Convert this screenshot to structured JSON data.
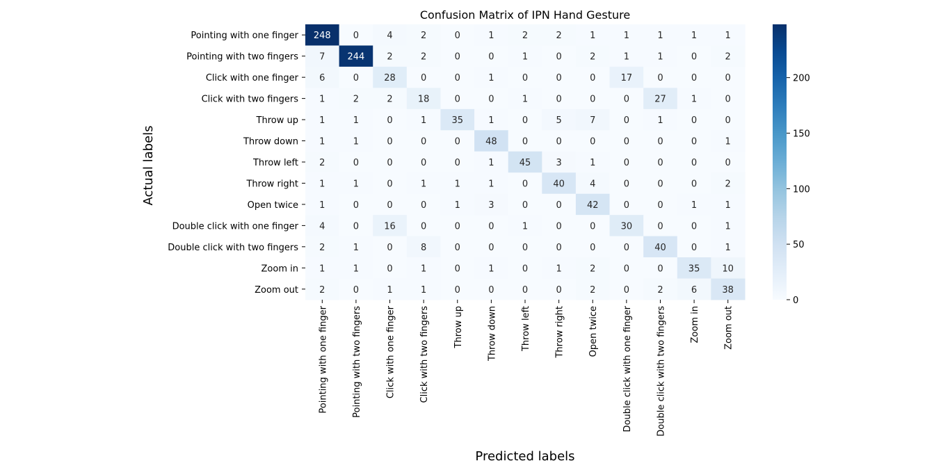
{
  "chart_data": {
    "type": "heatmap",
    "title": "Confusion Matrix of IPN Hand Gesture",
    "xlabel": "Predicted labels",
    "ylabel": "Actual labels",
    "colormap": "Blues",
    "color_range": [
      0,
      248
    ],
    "colorbar_ticks": [
      0,
      50,
      100,
      150,
      200
    ],
    "row_labels": [
      "Pointing with one finger",
      "Pointing with two fingers",
      "Click with one finger",
      "Click with two fingers",
      "Throw up",
      "Throw down",
      "Throw left",
      "Throw right",
      "Open twice",
      "Double click with one finger",
      "Double click with two fingers",
      "Zoom in",
      "Zoom out"
    ],
    "col_labels": [
      "Pointing with one finger",
      "Pointing with two fingers",
      "Click with one finger",
      "Click with two fingers",
      "Throw up",
      "Throw down",
      "Throw left",
      "Throw right",
      "Open twice",
      "Double click with one finger",
      "Double click with two fingers",
      "Zoom in",
      "Zoom out"
    ],
    "matrix": [
      [
        248,
        0,
        4,
        2,
        0,
        1,
        2,
        2,
        1,
        1,
        1,
        1,
        1
      ],
      [
        7,
        244,
        2,
        2,
        0,
        0,
        1,
        0,
        2,
        1,
        1,
        0,
        2
      ],
      [
        6,
        0,
        28,
        0,
        0,
        1,
        0,
        0,
        0,
        17,
        0,
        0,
        0
      ],
      [
        1,
        2,
        2,
        18,
        0,
        0,
        1,
        0,
        0,
        0,
        27,
        1,
        0
      ],
      [
        1,
        1,
        0,
        1,
        35,
        1,
        0,
        5,
        7,
        0,
        1,
        0,
        0
      ],
      [
        1,
        1,
        0,
        0,
        0,
        48,
        0,
        0,
        0,
        0,
        0,
        0,
        1
      ],
      [
        2,
        0,
        0,
        0,
        0,
        1,
        45,
        3,
        1,
        0,
        0,
        0,
        0
      ],
      [
        1,
        1,
        0,
        1,
        1,
        1,
        0,
        40,
        4,
        0,
        0,
        0,
        2
      ],
      [
        1,
        0,
        0,
        0,
        1,
        3,
        0,
        0,
        42,
        0,
        0,
        1,
        1
      ],
      [
        4,
        0,
        16,
        0,
        0,
        0,
        1,
        0,
        0,
        30,
        0,
        0,
        1
      ],
      [
        2,
        1,
        0,
        8,
        0,
        0,
        0,
        0,
        0,
        0,
        40,
        0,
        1
      ],
      [
        1,
        1,
        0,
        1,
        0,
        1,
        0,
        1,
        2,
        0,
        0,
        35,
        10
      ],
      [
        2,
        0,
        1,
        1,
        0,
        0,
        0,
        0,
        2,
        0,
        2,
        6,
        38
      ]
    ]
  }
}
